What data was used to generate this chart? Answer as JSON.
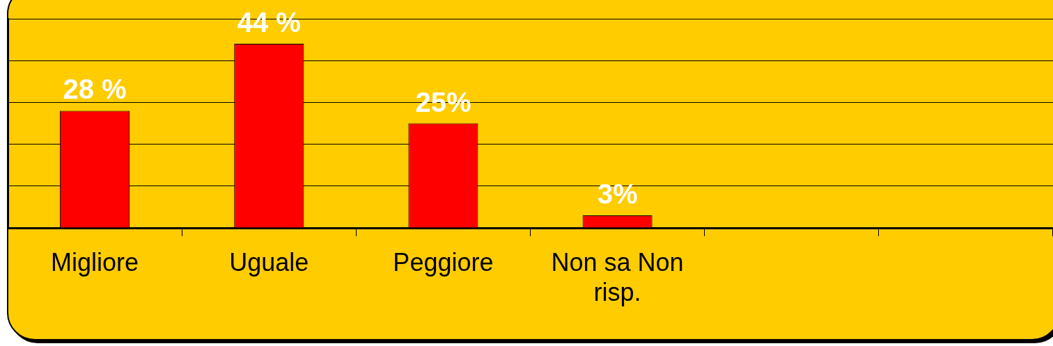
{
  "chart_data": {
    "type": "bar",
    "categories": [
      "Migliore",
      "Uguale",
      "Peggiore",
      "Non sa Non risp.",
      null,
      null
    ],
    "values": [
      28,
      44,
      25,
      3,
      null,
      null
    ],
    "value_labels": [
      "28 %",
      "44 %",
      "25%",
      "3%",
      null,
      null
    ],
    "color": "#ff0000",
    "tick_labels": "x",
    "grid": "y",
    "legend": false
  }
}
